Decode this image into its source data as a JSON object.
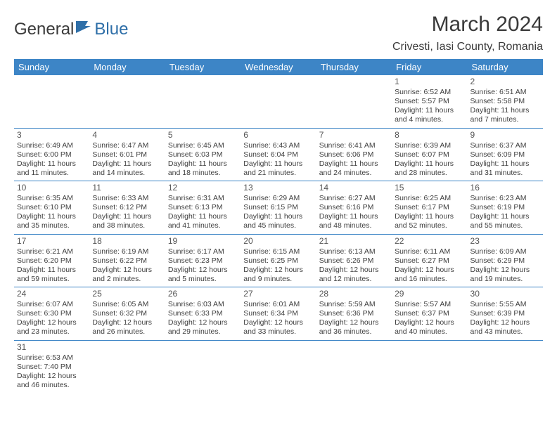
{
  "brand": {
    "part1": "General",
    "part2": "Blue"
  },
  "title": "March 2024",
  "location": "Crivesti, Iasi County, Romania",
  "header_bg": "#3d85c6",
  "day_names": [
    "Sunday",
    "Monday",
    "Tuesday",
    "Wednesday",
    "Thursday",
    "Friday",
    "Saturday"
  ],
  "weeks": [
    [
      {
        "num": "",
        "sr": "",
        "ss": "",
        "dl": ""
      },
      {
        "num": "",
        "sr": "",
        "ss": "",
        "dl": ""
      },
      {
        "num": "",
        "sr": "",
        "ss": "",
        "dl": ""
      },
      {
        "num": "",
        "sr": "",
        "ss": "",
        "dl": ""
      },
      {
        "num": "",
        "sr": "",
        "ss": "",
        "dl": ""
      },
      {
        "num": "1",
        "sr": "Sunrise: 6:52 AM",
        "ss": "Sunset: 5:57 PM",
        "dl": "Daylight: 11 hours and 4 minutes."
      },
      {
        "num": "2",
        "sr": "Sunrise: 6:51 AM",
        "ss": "Sunset: 5:58 PM",
        "dl": "Daylight: 11 hours and 7 minutes."
      }
    ],
    [
      {
        "num": "3",
        "sr": "Sunrise: 6:49 AM",
        "ss": "Sunset: 6:00 PM",
        "dl": "Daylight: 11 hours and 11 minutes."
      },
      {
        "num": "4",
        "sr": "Sunrise: 6:47 AM",
        "ss": "Sunset: 6:01 PM",
        "dl": "Daylight: 11 hours and 14 minutes."
      },
      {
        "num": "5",
        "sr": "Sunrise: 6:45 AM",
        "ss": "Sunset: 6:03 PM",
        "dl": "Daylight: 11 hours and 18 minutes."
      },
      {
        "num": "6",
        "sr": "Sunrise: 6:43 AM",
        "ss": "Sunset: 6:04 PM",
        "dl": "Daylight: 11 hours and 21 minutes."
      },
      {
        "num": "7",
        "sr": "Sunrise: 6:41 AM",
        "ss": "Sunset: 6:06 PM",
        "dl": "Daylight: 11 hours and 24 minutes."
      },
      {
        "num": "8",
        "sr": "Sunrise: 6:39 AM",
        "ss": "Sunset: 6:07 PM",
        "dl": "Daylight: 11 hours and 28 minutes."
      },
      {
        "num": "9",
        "sr": "Sunrise: 6:37 AM",
        "ss": "Sunset: 6:09 PM",
        "dl": "Daylight: 11 hours and 31 minutes."
      }
    ],
    [
      {
        "num": "10",
        "sr": "Sunrise: 6:35 AM",
        "ss": "Sunset: 6:10 PM",
        "dl": "Daylight: 11 hours and 35 minutes."
      },
      {
        "num": "11",
        "sr": "Sunrise: 6:33 AM",
        "ss": "Sunset: 6:12 PM",
        "dl": "Daylight: 11 hours and 38 minutes."
      },
      {
        "num": "12",
        "sr": "Sunrise: 6:31 AM",
        "ss": "Sunset: 6:13 PM",
        "dl": "Daylight: 11 hours and 41 minutes."
      },
      {
        "num": "13",
        "sr": "Sunrise: 6:29 AM",
        "ss": "Sunset: 6:15 PM",
        "dl": "Daylight: 11 hours and 45 minutes."
      },
      {
        "num": "14",
        "sr": "Sunrise: 6:27 AM",
        "ss": "Sunset: 6:16 PM",
        "dl": "Daylight: 11 hours and 48 minutes."
      },
      {
        "num": "15",
        "sr": "Sunrise: 6:25 AM",
        "ss": "Sunset: 6:17 PM",
        "dl": "Daylight: 11 hours and 52 minutes."
      },
      {
        "num": "16",
        "sr": "Sunrise: 6:23 AM",
        "ss": "Sunset: 6:19 PM",
        "dl": "Daylight: 11 hours and 55 minutes."
      }
    ],
    [
      {
        "num": "17",
        "sr": "Sunrise: 6:21 AM",
        "ss": "Sunset: 6:20 PM",
        "dl": "Daylight: 11 hours and 59 minutes."
      },
      {
        "num": "18",
        "sr": "Sunrise: 6:19 AM",
        "ss": "Sunset: 6:22 PM",
        "dl": "Daylight: 12 hours and 2 minutes."
      },
      {
        "num": "19",
        "sr": "Sunrise: 6:17 AM",
        "ss": "Sunset: 6:23 PM",
        "dl": "Daylight: 12 hours and 5 minutes."
      },
      {
        "num": "20",
        "sr": "Sunrise: 6:15 AM",
        "ss": "Sunset: 6:25 PM",
        "dl": "Daylight: 12 hours and 9 minutes."
      },
      {
        "num": "21",
        "sr": "Sunrise: 6:13 AM",
        "ss": "Sunset: 6:26 PM",
        "dl": "Daylight: 12 hours and 12 minutes."
      },
      {
        "num": "22",
        "sr": "Sunrise: 6:11 AM",
        "ss": "Sunset: 6:27 PM",
        "dl": "Daylight: 12 hours and 16 minutes."
      },
      {
        "num": "23",
        "sr": "Sunrise: 6:09 AM",
        "ss": "Sunset: 6:29 PM",
        "dl": "Daylight: 12 hours and 19 minutes."
      }
    ],
    [
      {
        "num": "24",
        "sr": "Sunrise: 6:07 AM",
        "ss": "Sunset: 6:30 PM",
        "dl": "Daylight: 12 hours and 23 minutes."
      },
      {
        "num": "25",
        "sr": "Sunrise: 6:05 AM",
        "ss": "Sunset: 6:32 PM",
        "dl": "Daylight: 12 hours and 26 minutes."
      },
      {
        "num": "26",
        "sr": "Sunrise: 6:03 AM",
        "ss": "Sunset: 6:33 PM",
        "dl": "Daylight: 12 hours and 29 minutes."
      },
      {
        "num": "27",
        "sr": "Sunrise: 6:01 AM",
        "ss": "Sunset: 6:34 PM",
        "dl": "Daylight: 12 hours and 33 minutes."
      },
      {
        "num": "28",
        "sr": "Sunrise: 5:59 AM",
        "ss": "Sunset: 6:36 PM",
        "dl": "Daylight: 12 hours and 36 minutes."
      },
      {
        "num": "29",
        "sr": "Sunrise: 5:57 AM",
        "ss": "Sunset: 6:37 PM",
        "dl": "Daylight: 12 hours and 40 minutes."
      },
      {
        "num": "30",
        "sr": "Sunrise: 5:55 AM",
        "ss": "Sunset: 6:39 PM",
        "dl": "Daylight: 12 hours and 43 minutes."
      }
    ],
    [
      {
        "num": "31",
        "sr": "Sunrise: 6:53 AM",
        "ss": "Sunset: 7:40 PM",
        "dl": "Daylight: 12 hours and 46 minutes."
      },
      {
        "num": "",
        "sr": "",
        "ss": "",
        "dl": ""
      },
      {
        "num": "",
        "sr": "",
        "ss": "",
        "dl": ""
      },
      {
        "num": "",
        "sr": "",
        "ss": "",
        "dl": ""
      },
      {
        "num": "",
        "sr": "",
        "ss": "",
        "dl": ""
      },
      {
        "num": "",
        "sr": "",
        "ss": "",
        "dl": ""
      },
      {
        "num": "",
        "sr": "",
        "ss": "",
        "dl": ""
      }
    ]
  ]
}
